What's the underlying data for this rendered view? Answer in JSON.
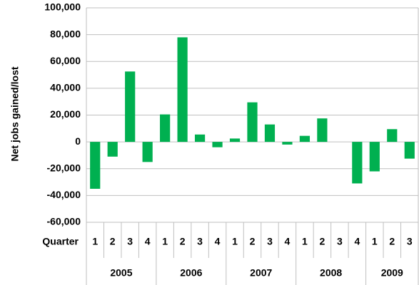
{
  "chart_data": {
    "type": "bar",
    "y_label": "Net jobs gained/lost",
    "x_label": "Quarter",
    "groups": [
      {
        "name": "2005",
        "categories": [
          "1",
          "2",
          "3",
          "4"
        ]
      },
      {
        "name": "2006",
        "categories": [
          "1",
          "2",
          "3",
          "4"
        ]
      },
      {
        "name": "2007",
        "categories": [
          "1",
          "2",
          "3",
          "4"
        ]
      },
      {
        "name": "2008",
        "categories": [
          "1",
          "2",
          "3",
          "4"
        ]
      },
      {
        "name": "2009",
        "categories": [
          "1",
          "2",
          "3"
        ]
      }
    ],
    "values": [
      -35000,
      -11000,
      52500,
      -15000,
      20500,
      78000,
      5500,
      -4000,
      2500,
      29500,
      13000,
      -2000,
      4500,
      17500,
      0,
      -31000,
      -22000,
      9500,
      -12500
    ],
    "color": "#00b050",
    "ylim": [
      -60000,
      100000
    ],
    "yticks": [
      {
        "value": -60000,
        "label": "-60,000"
      },
      {
        "value": -40000,
        "label": "-40,000"
      },
      {
        "value": -20000,
        "label": "-20,000"
      },
      0,
      {
        "value": 20000,
        "label": "20,000"
      },
      {
        "value": 40000,
        "label": "40,000"
      },
      {
        "value": 60000,
        "label": "60,000"
      },
      {
        "value": 80000,
        "label": "80,000"
      },
      {
        "value": 100000,
        "label": "100,000"
      }
    ],
    "grid": true
  }
}
